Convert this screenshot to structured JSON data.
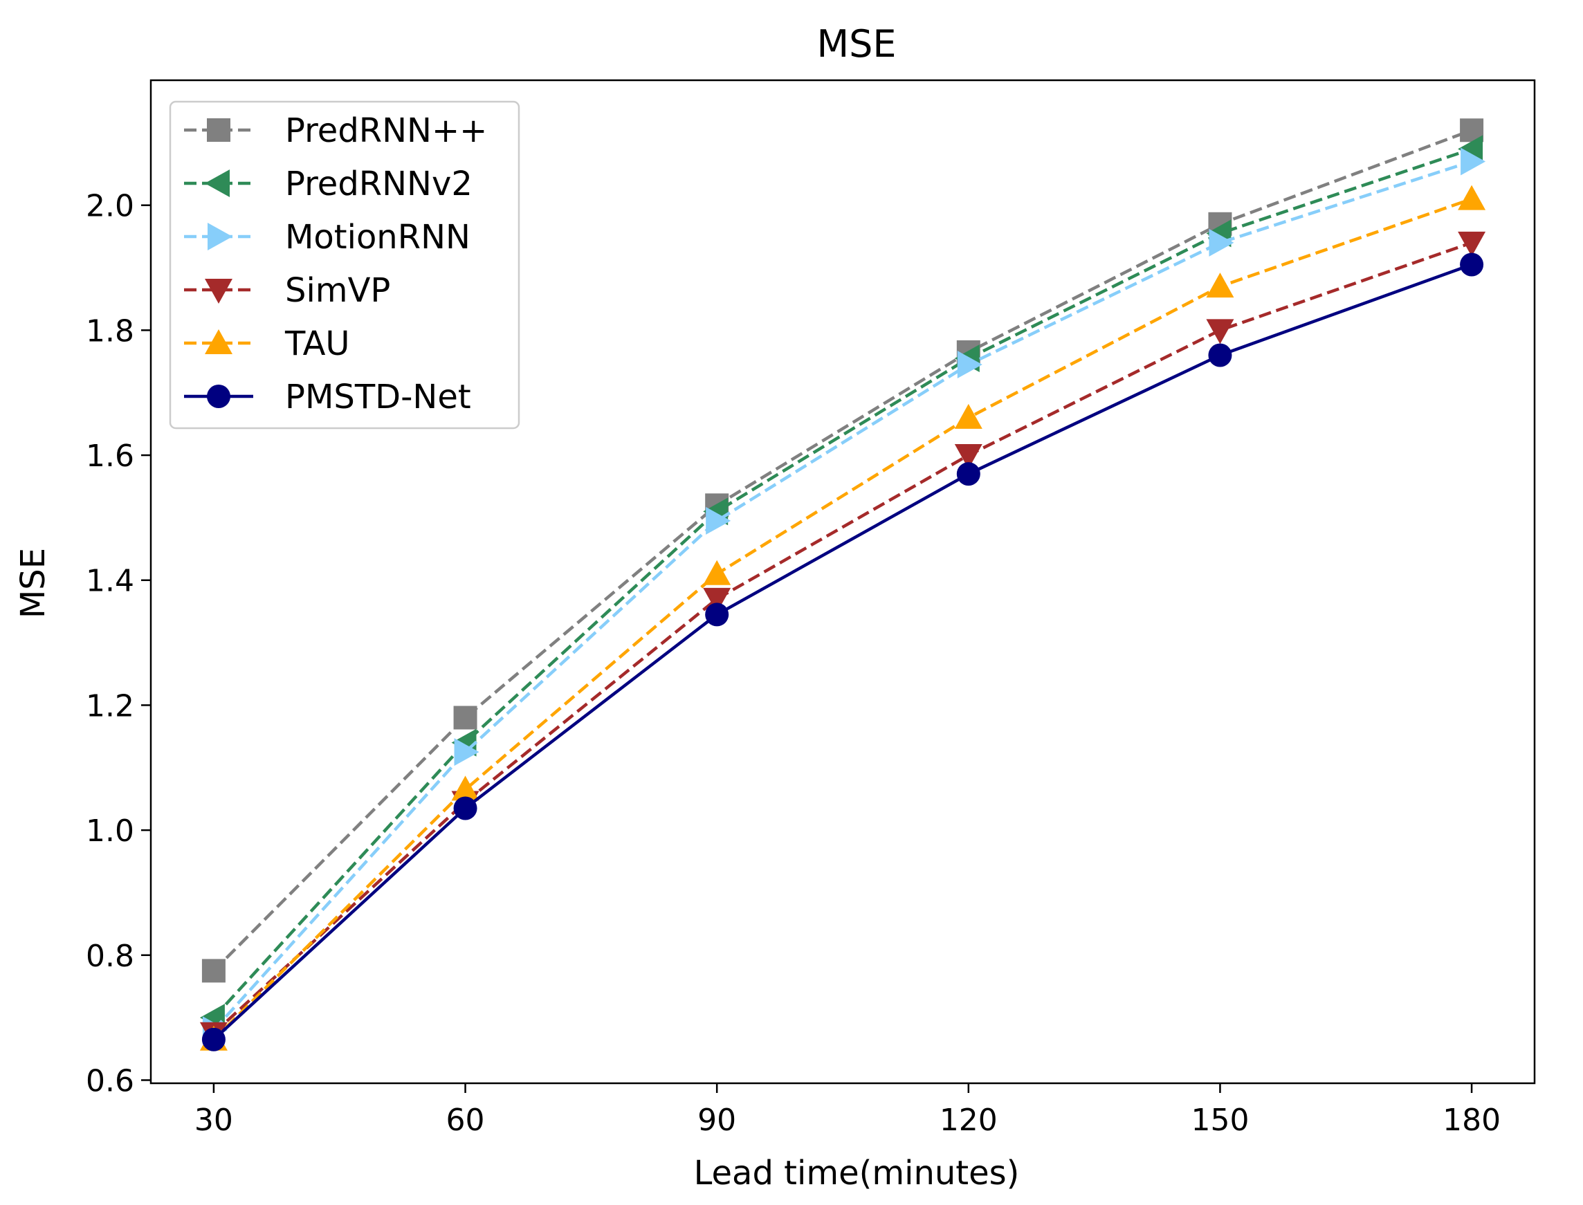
{
  "chart_data": {
    "type": "line",
    "title": "MSE",
    "xlabel": "Lead time(minutes)",
    "ylabel": "MSE",
    "x": [
      30,
      60,
      90,
      120,
      150,
      180
    ],
    "x_tick_labels": [
      "30",
      "60",
      "90",
      "120",
      "150",
      "180"
    ],
    "xlim": [
      22.5,
      187.5
    ],
    "ylim": [
      0.595,
      2.2
    ],
    "y_ticks": [
      0.6,
      0.8,
      1.0,
      1.2,
      1.4,
      1.6,
      1.8,
      2.0
    ],
    "y_tick_labels": [
      "0.6",
      "0.8",
      "1.0",
      "1.2",
      "1.4",
      "1.6",
      "1.8",
      "2.0"
    ],
    "grid": false,
    "legend_position": "top-left",
    "series": [
      {
        "name": "PredRNN++",
        "color": "#808080",
        "linestyle": "dashed",
        "marker": "square",
        "values": [
          0.775,
          1.18,
          1.52,
          1.765,
          1.97,
          2.12
        ]
      },
      {
        "name": "PredRNNv2",
        "color": "#2e8b57",
        "linestyle": "dashed",
        "marker": "triangle-left",
        "values": [
          0.7,
          1.14,
          1.51,
          1.755,
          1.955,
          2.09
        ]
      },
      {
        "name": "MotionRNN",
        "color": "#87cefa",
        "linestyle": "dashed",
        "marker": "triangle-right",
        "values": [
          0.68,
          1.125,
          1.495,
          1.745,
          1.94,
          2.07
        ]
      },
      {
        "name": "SimVP",
        "color": "#a52a2a",
        "linestyle": "dashed",
        "marker": "triangle-down",
        "values": [
          0.675,
          1.045,
          1.37,
          1.6,
          1.8,
          1.94
        ]
      },
      {
        "name": "TAU",
        "color": "#ffa500",
        "linestyle": "dashed",
        "marker": "triangle-up",
        "values": [
          0.665,
          1.065,
          1.41,
          1.66,
          1.87,
          2.01
        ]
      },
      {
        "name": "PMSTD-Net",
        "color": "#000080",
        "linestyle": "solid",
        "marker": "circle",
        "values": [
          0.665,
          1.035,
          1.345,
          1.57,
          1.76,
          1.905
        ]
      }
    ]
  }
}
